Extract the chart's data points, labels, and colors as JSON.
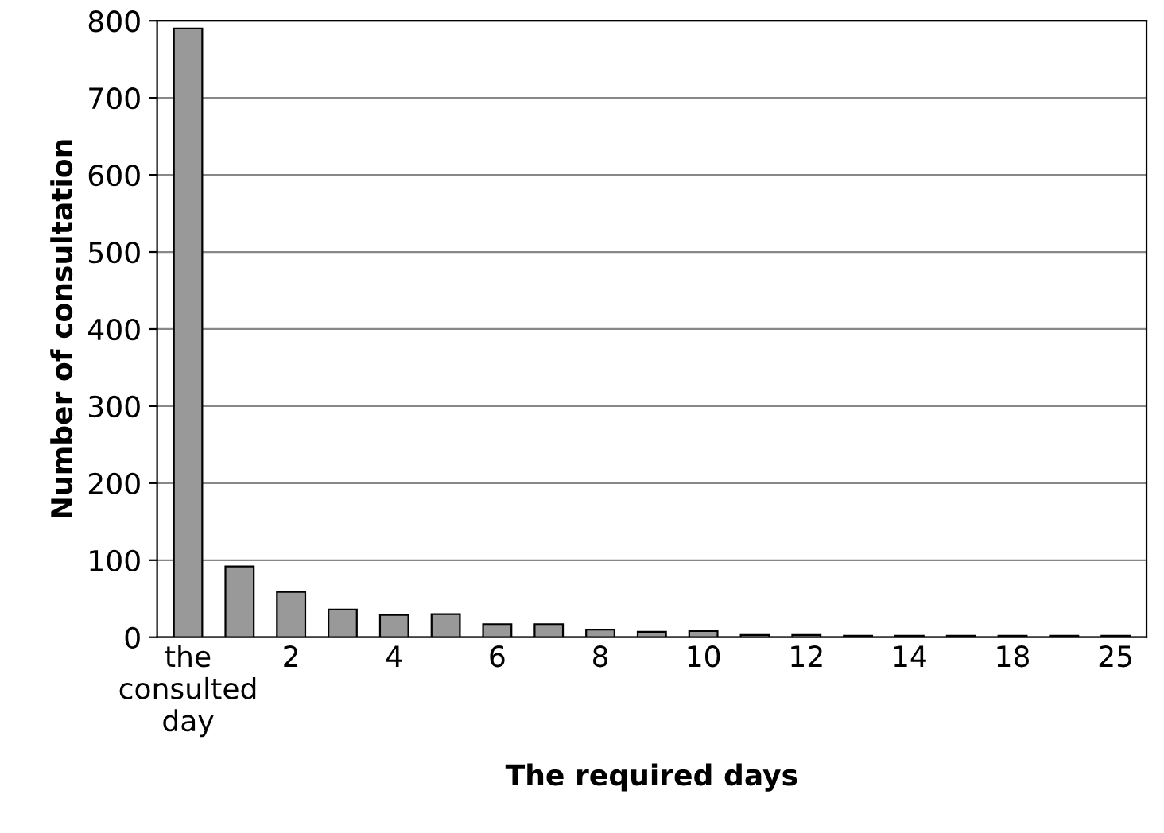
{
  "chart_data": {
    "type": "bar",
    "xlabel": "The required days",
    "ylabel": "Number of consultation",
    "categories": [
      "the\nconsulted\nday",
      null,
      "2",
      null,
      "4",
      null,
      "6",
      null,
      "8",
      null,
      "10",
      null,
      "12",
      null,
      "14",
      null,
      "18",
      null,
      "25"
    ],
    "values": [
      790,
      92,
      59,
      36,
      29,
      30,
      17,
      17,
      10,
      7,
      8,
      3,
      3,
      2,
      2,
      2,
      2,
      2,
      2
    ],
    "color": "#999999",
    "ylim": [
      0,
      800
    ],
    "yticks": [
      0,
      100,
      200,
      300,
      400,
      500,
      600,
      700,
      800
    ],
    "grid": "y",
    "legend": false
  }
}
